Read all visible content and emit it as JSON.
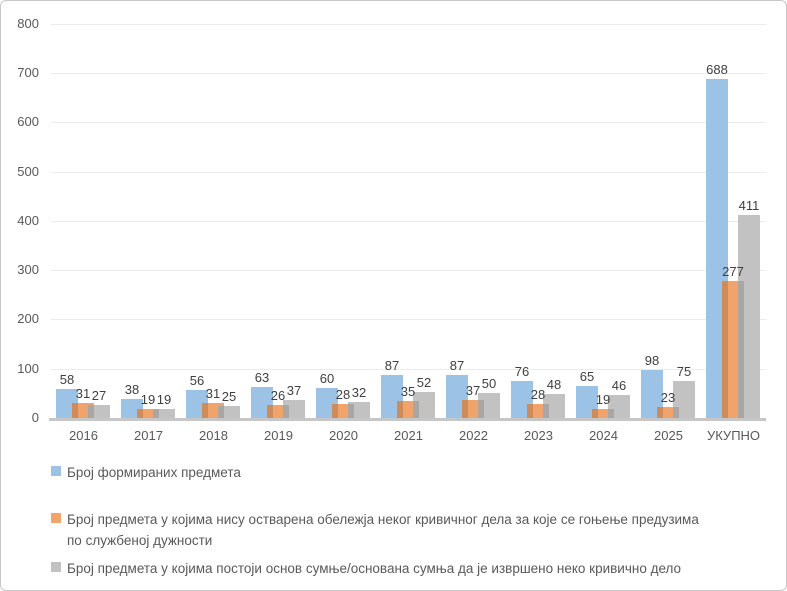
{
  "chart_data": {
    "type": "bar",
    "title": "",
    "xlabel": "",
    "ylabel": "",
    "categories": [
      "2016",
      "2017",
      "2018",
      "2019",
      "2020",
      "2021",
      "2022",
      "2023",
      "2024",
      "2025",
      "УКУПНО"
    ],
    "series": [
      {
        "name": "Број формираних предмета",
        "color": "#9CC3E6",
        "values": [
          58,
          38,
          56,
          63,
          60,
          87,
          87,
          76,
          65,
          98,
          688
        ]
      },
      {
        "name": "Број предмета у којима нису остварена обележја неког кривичног дела за које се гоњење предузима по службеној дужности",
        "color": "#F0A36B",
        "values": [
          31,
          19,
          31,
          26,
          28,
          35,
          37,
          28,
          19,
          23,
          277
        ]
      },
      {
        "name": "Број предмета у којима постоји основ сумње/основана сумња да је извршено неко кривично дело",
        "color": "#C2C2C2",
        "values": [
          27,
          19,
          25,
          37,
          32,
          52,
          50,
          48,
          46,
          75,
          411
        ]
      }
    ],
    "ylim": [
      0,
      800
    ],
    "ytick_step": 100,
    "yticks": [
      "0",
      "100",
      "200",
      "300",
      "400",
      "500",
      "600",
      "700",
      "800"
    ],
    "grid": true,
    "legend_position": "bottom",
    "colors": {
      "gridline": "#ececec",
      "axis_line": "#c6c6c6",
      "tick_text": "#595959",
      "data_label_text": "#404040"
    }
  }
}
